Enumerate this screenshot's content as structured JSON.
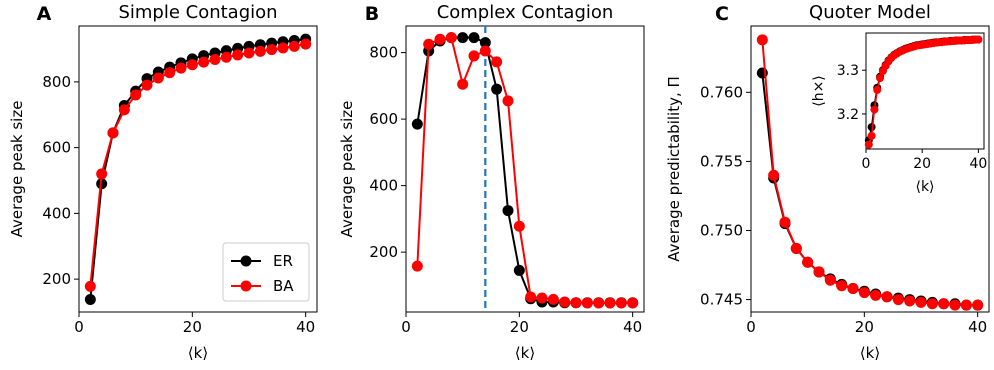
{
  "chart_data": [
    {
      "type": "line",
      "panel": "A",
      "title": "Simple Contagion",
      "xlabel": "⟨k⟩",
      "ylabel": "Average peak size",
      "xlim": [
        0,
        42
      ],
      "ylim": [
        100,
        970
      ],
      "xticks": [
        0,
        20,
        40
      ],
      "yticks": [
        200,
        400,
        600,
        800
      ],
      "legend": "lower-right",
      "x": [
        2,
        4,
        6,
        8,
        10,
        12,
        14,
        16,
        18,
        20,
        22,
        24,
        26,
        28,
        30,
        32,
        34,
        36,
        38,
        40
      ],
      "series": [
        {
          "name": "ER",
          "color": "#000000",
          "values": [
            138,
            490,
            645,
            728,
            772,
            810,
            830,
            845,
            858,
            870,
            880,
            888,
            895,
            902,
            908,
            913,
            918,
            922,
            926,
            930
          ]
        },
        {
          "name": "BA",
          "color": "#ff0000",
          "values": [
            178,
            520,
            645,
            715,
            760,
            790,
            812,
            828,
            842,
            852,
            860,
            868,
            875,
            882,
            888,
            893,
            898,
            903,
            908,
            915
          ]
        }
      ]
    },
    {
      "type": "line",
      "panel": "B",
      "title": "Complex Contagion",
      "xlabel": "⟨k⟩",
      "ylabel": "Average peak size",
      "xlim": [
        0,
        42
      ],
      "ylim": [
        20,
        880
      ],
      "xticks": [
        0,
        20,
        40
      ],
      "yticks": [
        200,
        400,
        600,
        800
      ],
      "vline": {
        "x": 14,
        "color": "#1f77b4",
        "style": "dashed"
      },
      "x": [
        2,
        4,
        6,
        8,
        10,
        12,
        14,
        16,
        18,
        20,
        22,
        24,
        26,
        28,
        30,
        32,
        34,
        36,
        38,
        40
      ],
      "series": [
        {
          "name": "ER",
          "color": "#000000",
          "values": [
            585,
            805,
            835,
            845,
            845,
            845,
            830,
            690,
            325,
            145,
            60,
            50,
            50,
            48,
            48,
            48,
            48,
            48,
            48,
            48
          ]
        },
        {
          "name": "BA",
          "color": "#ff0000",
          "values": [
            158,
            825,
            840,
            845,
            705,
            790,
            805,
            772,
            655,
            278,
            65,
            62,
            58,
            50,
            48,
            47,
            47,
            47,
            47,
            47
          ]
        }
      ]
    },
    {
      "type": "line",
      "panel": "C",
      "title": "Quoter Model",
      "xlabel": "⟨k⟩",
      "ylabel": "Average predictability, Π",
      "xlim": [
        0,
        42
      ],
      "ylim": [
        0.7441,
        0.7648
      ],
      "xticks": [
        0,
        20,
        40
      ],
      "yticks": [
        0.745,
        0.75,
        0.755,
        0.76
      ],
      "ytick_labels": [
        "0.745",
        "0.750",
        "0.755",
        "0.760"
      ],
      "x": [
        2,
        4,
        6,
        8,
        10,
        12,
        14,
        16,
        18,
        20,
        22,
        24,
        26,
        28,
        30,
        32,
        34,
        36,
        38,
        40
      ],
      "series": [
        {
          "name": "ER",
          "color": "#000000",
          "values": [
            0.7614,
            0.7538,
            0.7505,
            0.7487,
            0.7477,
            0.747,
            0.7465,
            0.7461,
            0.7458,
            0.7456,
            0.7454,
            0.7452,
            0.7451,
            0.745,
            0.7449,
            0.7448,
            0.7447,
            0.7447,
            0.7446,
            0.7446
          ]
        },
        {
          "name": "BA",
          "color": "#ff0000",
          "values": [
            0.7638,
            0.754,
            0.7506,
            0.7487,
            0.7477,
            0.747,
            0.7464,
            0.746,
            0.7458,
            0.7455,
            0.7453,
            0.7452,
            0.745,
            0.7449,
            0.7448,
            0.7447,
            0.7447,
            0.7446,
            0.7446,
            0.7446
          ]
        }
      ],
      "inset": {
        "xlabel": "⟨k⟩",
        "ylabel": "⟨h×⟩",
        "xlim": [
          0,
          42
        ],
        "ylim": [
          3.12,
          3.385
        ],
        "xticks": [
          0,
          20,
          40
        ],
        "yticks": [
          3.2,
          3.3
        ],
        "x": [
          1,
          2,
          3,
          4,
          5,
          6,
          7,
          8,
          9,
          10,
          11,
          12,
          13,
          14,
          15,
          16,
          17,
          18,
          19,
          20,
          21,
          22,
          23,
          24,
          25,
          26,
          27,
          28,
          29,
          30,
          31,
          32,
          33,
          34,
          35,
          36,
          37,
          38,
          39,
          40
        ],
        "series": [
          {
            "name": "ER",
            "color": "#000000",
            "values": [
              3.14,
              3.17,
              3.22,
              3.26,
              3.285,
              3.3,
              3.312,
              3.322,
              3.329,
              3.335,
              3.339,
              3.343,
              3.346,
              3.349,
              3.351,
              3.353,
              3.355,
              3.357,
              3.358,
              3.359,
              3.36,
              3.361,
              3.362,
              3.363,
              3.364,
              3.364,
              3.365,
              3.366,
              3.366,
              3.367,
              3.367,
              3.368,
              3.368,
              3.368,
              3.369,
              3.369,
              3.369,
              3.37,
              3.37,
              3.37
            ]
          },
          {
            "name": "BA",
            "color": "#ff0000",
            "values": [
              3.13,
              3.15,
              3.21,
              3.255,
              3.282,
              3.298,
              3.31,
              3.32,
              3.328,
              3.334,
              3.338,
              3.342,
              3.345,
              3.348,
              3.35,
              3.352,
              3.354,
              3.356,
              3.357,
              3.358,
              3.359,
              3.36,
              3.361,
              3.362,
              3.363,
              3.364,
              3.364,
              3.365,
              3.366,
              3.366,
              3.367,
              3.367,
              3.368,
              3.368,
              3.368,
              3.369,
              3.369,
              3.369,
              3.37,
              3.37
            ]
          }
        ]
      }
    }
  ]
}
